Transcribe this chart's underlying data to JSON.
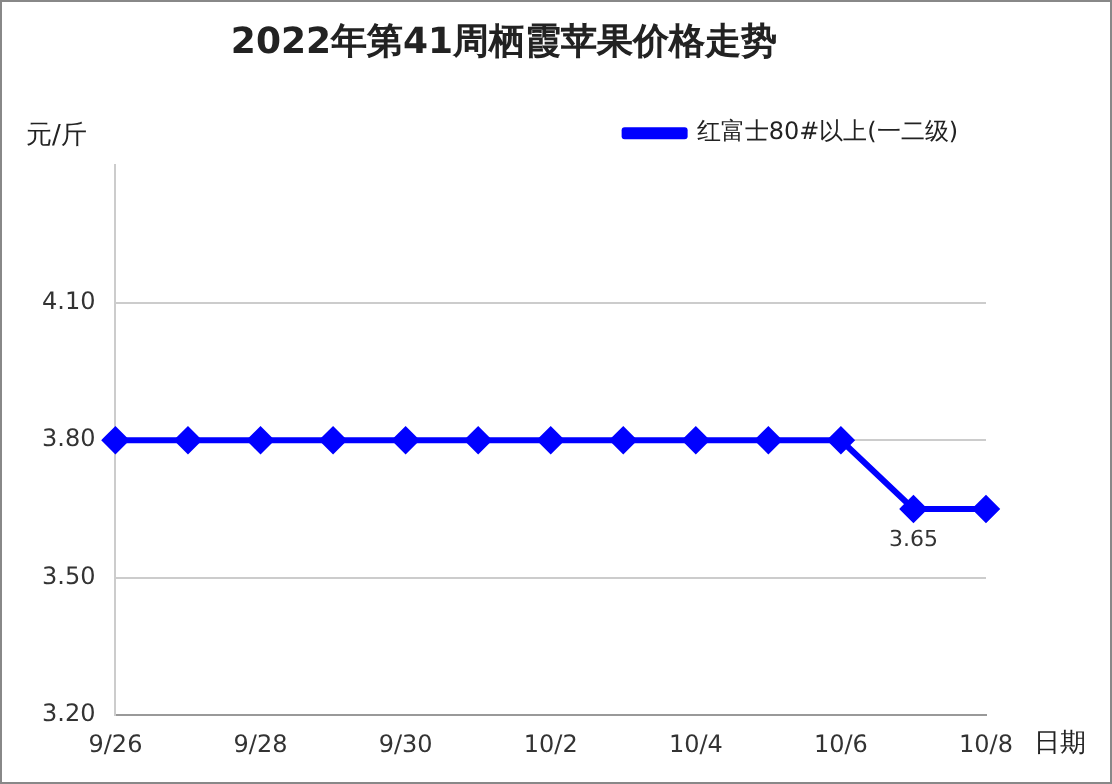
{
  "chart_data": {
    "type": "line",
    "title": "2022年第41周栖霞苹果价格走势",
    "ylabel": "元/斤",
    "xlabel": "日期",
    "categories": [
      "9/26",
      null,
      "9/28",
      null,
      "9/30",
      null,
      "10/2",
      null,
      "10/4",
      null,
      "10/6",
      null,
      "10/8"
    ],
    "series": [
      {
        "name": "红富士80#以上(一二级)",
        "color": "#0000ff",
        "values": [
          3.8,
          3.8,
          3.8,
          3.8,
          3.8,
          3.8,
          3.8,
          3.8,
          3.8,
          3.8,
          3.8,
          3.65,
          3.65
        ],
        "value_labels": [
          null,
          null,
          null,
          null,
          null,
          null,
          null,
          null,
          null,
          null,
          null,
          "3.65",
          null
        ]
      }
    ],
    "ylim": [
      3.2,
      4.4
    ],
    "yticks": [
      {
        "value": 3.2,
        "label": "3.20"
      },
      {
        "value": 3.5,
        "label": "3.50"
      },
      {
        "value": 3.8,
        "label": "3.80"
      },
      {
        "value": 4.1,
        "label": "4.10"
      }
    ],
    "grid": "y",
    "legend": "top right",
    "marker": "diamond",
    "line_style": "solid"
  }
}
